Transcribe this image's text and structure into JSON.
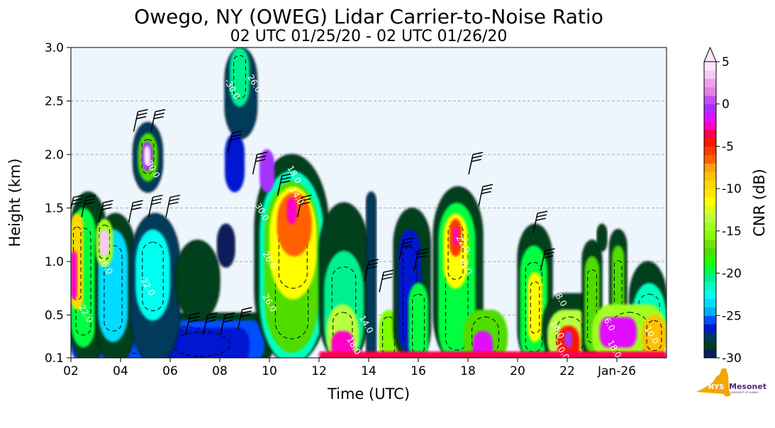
{
  "chart_data": {
    "type": "heatmap",
    "title": "Owego, NY (OWEG) Lidar Carrier-to-Noise Ratio",
    "subtitle": "02 UTC 01/25/20 - 02 UTC 01/26/20",
    "xlabel": "Time (UTC)",
    "ylabel": "Height (km)",
    "xlim_hours_since_start": [
      0,
      24
    ],
    "ylim": [
      0.1,
      3.0
    ],
    "x_ticks": [
      {
        "hour": 0,
        "label": "02"
      },
      {
        "hour": 2,
        "label": "04"
      },
      {
        "hour": 4,
        "label": "06"
      },
      {
        "hour": 6,
        "label": "08"
      },
      {
        "hour": 8,
        "label": "10"
      },
      {
        "hour": 10,
        "label": "12"
      },
      {
        "hour": 12,
        "label": "14"
      },
      {
        "hour": 14,
        "label": "16"
      },
      {
        "hour": 16,
        "label": "18"
      },
      {
        "hour": 18,
        "label": "20"
      },
      {
        "hour": 20,
        "label": "22"
      },
      {
        "hour": 22,
        "label": "Jan-26"
      }
    ],
    "y_ticks": [
      {
        "value": 0.1,
        "label": "0.1"
      },
      {
        "value": 0.5,
        "label": "0.5"
      },
      {
        "value": 1.0,
        "label": "1.0"
      },
      {
        "value": 1.5,
        "label": "1.5"
      },
      {
        "value": 2.0,
        "label": "2.0"
      },
      {
        "value": 2.5,
        "label": "2.5"
      },
      {
        "value": 3.0,
        "label": "3.0"
      }
    ],
    "grid": "horizontal-dashed",
    "background_color": "#eef6fd",
    "colorbar": {
      "label": "CNR (dB)",
      "range": [
        -30,
        5
      ],
      "extend": "max",
      "ticks": [
        {
          "value": 5,
          "label": "5"
        },
        {
          "value": 0,
          "label": "0"
        },
        {
          "value": -5,
          "label": "-5"
        },
        {
          "value": -10,
          "label": "-10"
        },
        {
          "value": -15,
          "label": "-15"
        },
        {
          "value": -20,
          "label": "-20"
        },
        {
          "value": -25,
          "label": "-25"
        },
        {
          "value": -30,
          "label": "-30"
        }
      ],
      "colors_low_to_high": [
        "#0a1f5c",
        "#00401f",
        "#003a5a",
        "#0018d0",
        "#0050ff",
        "#00b0f0",
        "#00dcff",
        "#00fff0",
        "#00ffc0",
        "#00f090",
        "#00ff40",
        "#20ff00",
        "#50dd00",
        "#70e000",
        "#80ff00",
        "#a0ff20",
        "#b8ff40",
        "#d8ff20",
        "#ffff00",
        "#ffe800",
        "#ffd800",
        "#ffc000",
        "#ffa010",
        "#ff6000",
        "#ff3800",
        "#ff1800",
        "#ff0050",
        "#ff00c8",
        "#e010ff",
        "#a830ff",
        "#c050f0",
        "#e880e8",
        "#f0a0f0",
        "#f8c8f8",
        "#fce8fc"
      ]
    },
    "features": [
      {
        "t0": 0,
        "t1": 8.2,
        "z0": 0.1,
        "z1": 0.52,
        "cnr": -28.5
      },
      {
        "t0": 0,
        "t1": 7.8,
        "z0": 0.1,
        "z1": 0.45,
        "cnr": -25.5
      },
      {
        "t0": 3.3,
        "t1": 7.2,
        "z0": 0.1,
        "z1": 0.38,
        "cnr": -26.5
      },
      {
        "t0": 0,
        "t1": 1.4,
        "z0": 0.1,
        "z1": 1.65,
        "cnr": -28.5
      },
      {
        "t0": 0,
        "t1": 1.0,
        "z0": 0.25,
        "z1": 1.5,
        "cnr": -20
      },
      {
        "t0": 0,
        "t1": 0.5,
        "z0": 0.6,
        "z1": 1.45,
        "cnr": -10
      },
      {
        "t0": 0,
        "t1": 0.25,
        "z0": 0.7,
        "z1": 1.1,
        "cnr": -3
      },
      {
        "t0": 1.0,
        "t1": 2.6,
        "z0": 0.1,
        "z1": 1.45,
        "cnr": -28.5
      },
      {
        "t0": 1.1,
        "t1": 2.3,
        "z0": 0.3,
        "z1": 1.3,
        "cnr": -24
      },
      {
        "t0": 1.0,
        "t1": 1.7,
        "z0": 1.0,
        "z1": 1.4,
        "cnr": -15
      },
      {
        "t0": 1.15,
        "t1": 1.55,
        "z0": 1.1,
        "z1": 1.3,
        "cnr": 3
      },
      {
        "t0": 2.4,
        "t1": 4.4,
        "z0": 0.1,
        "z1": 1.45,
        "cnr": -28
      },
      {
        "t0": 2.6,
        "t1": 4.0,
        "z0": 0.5,
        "z1": 1.3,
        "cnr": -23
      },
      {
        "t0": 4.2,
        "t1": 6.0,
        "z0": 0.5,
        "z1": 1.2,
        "cnr": -28.5
      },
      {
        "t0": 5.9,
        "t1": 6.6,
        "z0": 1.0,
        "z1": 1.35,
        "cnr": -29.5
      },
      {
        "t0": 2.5,
        "t1": 3.7,
        "z0": 1.7,
        "z1": 2.3,
        "cnr": -28
      },
      {
        "t0": 2.7,
        "t1": 3.5,
        "z0": 1.8,
        "z1": 2.2,
        "cnr": -18
      },
      {
        "t0": 2.85,
        "t1": 3.3,
        "z0": 1.9,
        "z1": 2.12,
        "cnr": -1
      },
      {
        "t0": 2.95,
        "t1": 3.2,
        "z0": 1.95,
        "z1": 2.08,
        "cnr": 4
      },
      {
        "t0": 6.2,
        "t1": 7.5,
        "z0": 2.2,
        "z1": 3.0,
        "cnr": -28
      },
      {
        "t0": 6.4,
        "t1": 7.2,
        "z0": 2.5,
        "z1": 3.0,
        "cnr": -21
      },
      {
        "t0": 6.2,
        "t1": 7.0,
        "z0": 1.7,
        "z1": 2.2,
        "cnr": -27
      },
      {
        "t0": 7.4,
        "t1": 10.4,
        "z0": 0.1,
        "z1": 2.0,
        "cnr": -28.5
      },
      {
        "t0": 7.6,
        "t1": 10.2,
        "z0": 0.1,
        "z1": 1.85,
        "cnr": -22
      },
      {
        "t0": 7.8,
        "t1": 10.0,
        "z0": 0.2,
        "z1": 1.75,
        "cnr": -18
      },
      {
        "t0": 8.0,
        "t1": 9.9,
        "z0": 0.7,
        "z1": 1.7,
        "cnr": -12
      },
      {
        "t0": 8.3,
        "t1": 9.7,
        "z0": 1.1,
        "z1": 1.65,
        "cnr": -7
      },
      {
        "t0": 8.7,
        "t1": 9.1,
        "z0": 1.4,
        "z1": 1.6,
        "cnr": -3
      },
      {
        "t0": 7.6,
        "t1": 8.2,
        "z0": 1.7,
        "z1": 2.05,
        "cnr": -1
      },
      {
        "t0": 10.0,
        "t1": 12.0,
        "z0": 0.1,
        "z1": 1.55,
        "cnr": -28.5
      },
      {
        "t0": 10.2,
        "t1": 11.8,
        "z0": 0.1,
        "z1": 1.1,
        "cnr": -21
      },
      {
        "t0": 10.3,
        "t1": 11.6,
        "z0": 0.1,
        "z1": 0.6,
        "cnr": -14
      },
      {
        "t0": 10.5,
        "t1": 11.4,
        "z0": 0.12,
        "z1": 0.35,
        "cnr": -3
      },
      {
        "t0": 11.9,
        "t1": 12.3,
        "z0": 0.1,
        "z1": 1.65,
        "cnr": -28
      },
      {
        "t0": 12.4,
        "t1": 13.2,
        "z0": 0.1,
        "z1": 0.55,
        "cnr": -16
      },
      {
        "t0": 13.0,
        "t1": 14.5,
        "z0": 0.1,
        "z1": 1.5,
        "cnr": -28.5
      },
      {
        "t0": 13.2,
        "t1": 14.1,
        "z0": 0.2,
        "z1": 1.3,
        "cnr": -26.5
      },
      {
        "t0": 13.6,
        "t1": 14.4,
        "z0": 0.1,
        "z1": 0.8,
        "cnr": -20
      },
      {
        "t0": 14.6,
        "t1": 16.6,
        "z0": 0.1,
        "z1": 1.7,
        "cnr": -28.5
      },
      {
        "t0": 14.8,
        "t1": 16.3,
        "z0": 0.1,
        "z1": 1.55,
        "cnr": -20
      },
      {
        "t0": 15.0,
        "t1": 16.0,
        "z0": 0.8,
        "z1": 1.45,
        "cnr": -12
      },
      {
        "t0": 15.25,
        "t1": 15.75,
        "z0": 1.1,
        "z1": 1.4,
        "cnr": -6
      },
      {
        "t0": 15.4,
        "t1": 15.6,
        "z0": 1.2,
        "z1": 1.32,
        "cnr": -3
      },
      {
        "t0": 15.8,
        "t1": 17.6,
        "z0": 0.1,
        "z1": 0.55,
        "cnr": -18
      },
      {
        "t0": 16.2,
        "t1": 17.0,
        "z0": 0.12,
        "z1": 0.35,
        "cnr": -2
      },
      {
        "t0": 18.0,
        "t1": 19.4,
        "z0": 0.1,
        "z1": 1.35,
        "cnr": -28.5
      },
      {
        "t0": 18.1,
        "t1": 19.2,
        "z0": 0.1,
        "z1": 1.15,
        "cnr": -20
      },
      {
        "t0": 18.4,
        "t1": 19.0,
        "z0": 0.3,
        "z1": 0.9,
        "cnr": -12
      },
      {
        "t0": 19.0,
        "t1": 21.5,
        "z0": 0.1,
        "z1": 0.7,
        "cnr": -28.5
      },
      {
        "t0": 19.2,
        "t1": 21.0,
        "z0": 0.1,
        "z1": 0.55,
        "cnr": -14
      },
      {
        "t0": 19.6,
        "t1": 20.5,
        "z0": 0.12,
        "z1": 0.4,
        "cnr": -5
      },
      {
        "t0": 19.9,
        "t1": 20.2,
        "z0": 0.25,
        "z1": 0.35,
        "cnr": -1
      },
      {
        "t0": 20.6,
        "t1": 21.4,
        "z0": 0.1,
        "z1": 1.2,
        "cnr": -28.5
      },
      {
        "t0": 20.7,
        "t1": 21.3,
        "z0": 0.2,
        "z1": 1.05,
        "cnr": -18
      },
      {
        "t0": 21.2,
        "t1": 21.6,
        "z0": 1.15,
        "z1": 1.35,
        "cnr": -28.5
      },
      {
        "t0": 21.7,
        "t1": 22.4,
        "z0": 0.1,
        "z1": 1.3,
        "cnr": -28.5
      },
      {
        "t0": 21.8,
        "t1": 22.3,
        "z0": 0.2,
        "z1": 1.15,
        "cnr": -18
      },
      {
        "t0": 22.5,
        "t1": 24.0,
        "z0": 0.1,
        "z1": 1.0,
        "cnr": -28.5
      },
      {
        "t0": 22.6,
        "t1": 24.0,
        "z0": 0.1,
        "z1": 0.8,
        "cnr": -22
      },
      {
        "t0": 21.0,
        "t1": 24.0,
        "z0": 0.1,
        "z1": 0.6,
        "cnr": -15
      },
      {
        "t0": 21.3,
        "t1": 22.8,
        "z0": 0.25,
        "z1": 0.48,
        "cnr": -2
      },
      {
        "t0": 23.0,
        "t1": 24.0,
        "z0": 0.15,
        "z1": 0.5,
        "cnr": -9
      },
      {
        "t0": 10.0,
        "t1": 24.0,
        "z0": 0.1,
        "z1": 0.16,
        "cnr": -4
      }
    ],
    "contour_labels": [
      {
        "t": 6.4,
        "z": 2.6,
        "label": "-30.0"
      },
      {
        "t": 7.3,
        "z": 2.65,
        "label": "26.0"
      },
      {
        "t": 3.2,
        "z": 1.85,
        "label": "30.0"
      },
      {
        "t": 8.9,
        "z": 1.8,
        "label": "18.0"
      },
      {
        "t": 9.0,
        "z": 1.6,
        "label": "14.0"
      },
      {
        "t": 7.6,
        "z": 1.45,
        "label": "30.0"
      },
      {
        "t": 7.9,
        "z": 1.0,
        "label": "26.0"
      },
      {
        "t": 0.5,
        "z": 0.5,
        "label": "22.0"
      },
      {
        "t": 1.3,
        "z": 0.95,
        "label": "26.0"
      },
      {
        "t": 3.0,
        "z": 0.75,
        "label": "22.0"
      },
      {
        "t": 7.9,
        "z": 0.6,
        "label": "26.0"
      },
      {
        "t": 11.8,
        "z": 0.4,
        "label": "14.0"
      },
      {
        "t": 11.3,
        "z": 0.2,
        "label": "18.0"
      },
      {
        "t": 15.7,
        "z": 1.15,
        "label": "22.0"
      },
      {
        "t": 15.8,
        "z": 0.95,
        "label": "18.0"
      },
      {
        "t": 19.6,
        "z": 0.65,
        "label": "18.0"
      },
      {
        "t": 19.5,
        "z": 0.35,
        "label": "14.0"
      },
      {
        "t": 19.7,
        "z": 0.15,
        "label": "10.0"
      },
      {
        "t": 21.6,
        "z": 0.4,
        "label": "6.0"
      },
      {
        "t": 23.3,
        "z": 0.3,
        "label": "10.0"
      },
      {
        "t": 21.8,
        "z": 0.17,
        "label": "18.0"
      }
    ],
    "wind_barbs": [
      {
        "t": 0.1,
        "z": 1.6
      },
      {
        "t": 0.6,
        "z": 1.6
      },
      {
        "t": 1.3,
        "z": 1.55
      },
      {
        "t": 2.5,
        "z": 1.55
      },
      {
        "t": 3.3,
        "z": 1.6
      },
      {
        "t": 4.0,
        "z": 1.6
      },
      {
        "t": 2.7,
        "z": 2.4
      },
      {
        "t": 3.4,
        "z": 2.4
      },
      {
        "t": 6.5,
        "z": 2.2
      },
      {
        "t": 7.5,
        "z": 2.0
      },
      {
        "t": 8.5,
        "z": 1.8
      },
      {
        "t": 9.3,
        "z": 1.6
      },
      {
        "t": 4.8,
        "z": 0.5
      },
      {
        "t": 5.5,
        "z": 0.5
      },
      {
        "t": 6.2,
        "z": 0.5
      },
      {
        "t": 6.9,
        "z": 0.55
      },
      {
        "t": 12.0,
        "z": 1.0
      },
      {
        "t": 12.6,
        "z": 0.9
      },
      {
        "t": 16.2,
        "z": 2.0
      },
      {
        "t": 16.6,
        "z": 1.7
      },
      {
        "t": 18.8,
        "z": 1.45
      },
      {
        "t": 19.1,
        "z": 1.1
      },
      {
        "t": 14.0,
        "z": 1.1
      },
      {
        "t": 13.4,
        "z": 1.2
      }
    ]
  },
  "logo": {
    "state": "NYS",
    "name": "Mesonet",
    "sub": "UNIVERSITY AT ALBANY"
  }
}
